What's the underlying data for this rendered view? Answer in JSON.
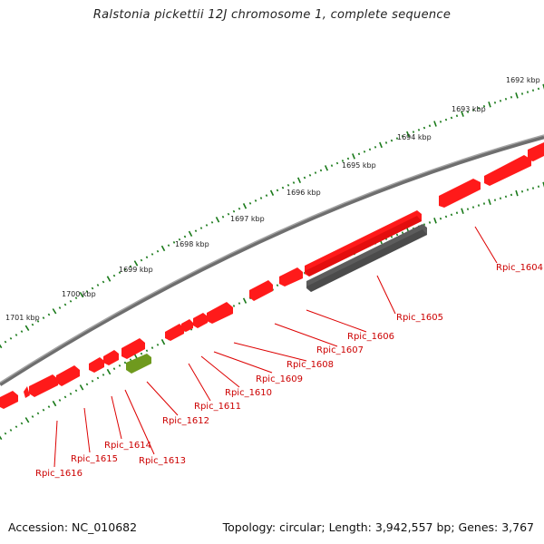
{
  "title": "Ralstonia pickettii 12J chromosome 1, complete sequence",
  "footer": {
    "accession": "Accession: NC_010682",
    "stats": "Topology: circular; Length: 3,942,557 bp; Genes: 3,767"
  },
  "colors": {
    "forward_gene": "#ff1a1a",
    "reverse_gene": "#ee1010",
    "pseudo_gene": "#6a6a6a",
    "rna_gene": "#6f9a1e",
    "backbone": "#7f7f7f",
    "tick": "#1a7a1a",
    "label": "#cc0000"
  },
  "kbp_ticks": [
    "1692 kbp",
    "1693 kbp",
    "1694 kbp",
    "1695 kbp",
    "1696 kbp",
    "1697 kbp",
    "1698 kbp",
    "1699 kbp",
    "1700 kbp",
    "1701 kbp"
  ],
  "genes": [
    "Rpic_1604",
    "Rpic_1605",
    "Rpic_1606",
    "Rpic_1607",
    "Rpic_1608",
    "Rpic_1609",
    "Rpic_1610",
    "Rpic_1611",
    "Rpic_1612",
    "Rpic_1613",
    "Rpic_1614",
    "Rpic_1615",
    "Rpic_1616"
  ]
}
